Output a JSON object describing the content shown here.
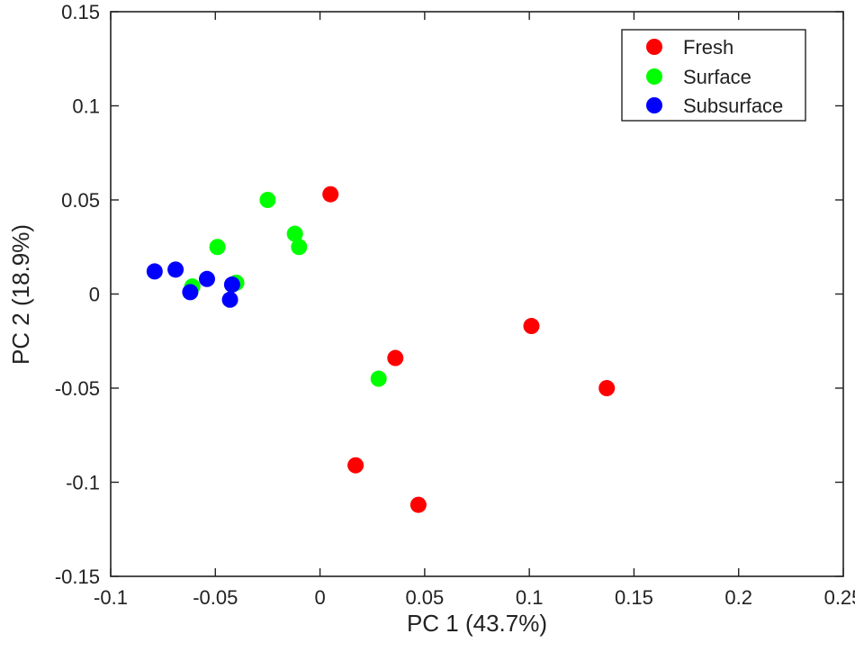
{
  "chart_data": {
    "type": "scatter",
    "xlabel": "PC 1 (43.7%)",
    "ylabel": "PC 2 (18.9%)",
    "xlim": [
      -0.1,
      0.25
    ],
    "ylim": [
      -0.15,
      0.15
    ],
    "x_ticks": [
      -0.1,
      -0.05,
      0,
      0.05,
      0.1,
      0.15,
      0.2,
      0.25
    ],
    "y_ticks": [
      -0.15,
      -0.1,
      -0.05,
      0,
      0.05,
      0.1,
      0.15
    ],
    "x_tick_labels": [
      "-0.1",
      "-0.05",
      "0",
      "0.05",
      "0.1",
      "0.15",
      "0.2",
      "0.25"
    ],
    "y_tick_labels": [
      "-0.15",
      "-0.1",
      "-0.05",
      "0",
      "0.05",
      "0.1",
      "0.15"
    ],
    "grid": false,
    "legend_position": "top-right",
    "series": [
      {
        "name": "Fresh",
        "color": "#ff0000",
        "points": [
          [
            0.005,
            0.053
          ],
          [
            0.036,
            -0.034
          ],
          [
            0.017,
            -0.091
          ],
          [
            0.047,
            -0.112
          ],
          [
            0.101,
            -0.017
          ],
          [
            0.137,
            -0.05
          ]
        ]
      },
      {
        "name": "Surface",
        "color": "#00ff00",
        "points": [
          [
            -0.025,
            0.05
          ],
          [
            -0.012,
            0.032
          ],
          [
            -0.01,
            0.025
          ],
          [
            -0.049,
            0.025
          ],
          [
            -0.04,
            0.006
          ],
          [
            -0.061,
            0.004
          ],
          [
            0.028,
            -0.045
          ]
        ]
      },
      {
        "name": "Subsurface",
        "color": "#0000ff",
        "points": [
          [
            -0.079,
            0.012
          ],
          [
            -0.069,
            0.013
          ],
          [
            -0.054,
            0.008
          ],
          [
            -0.042,
            0.005
          ],
          [
            -0.062,
            0.001
          ],
          [
            -0.043,
            -0.003
          ]
        ]
      }
    ]
  }
}
